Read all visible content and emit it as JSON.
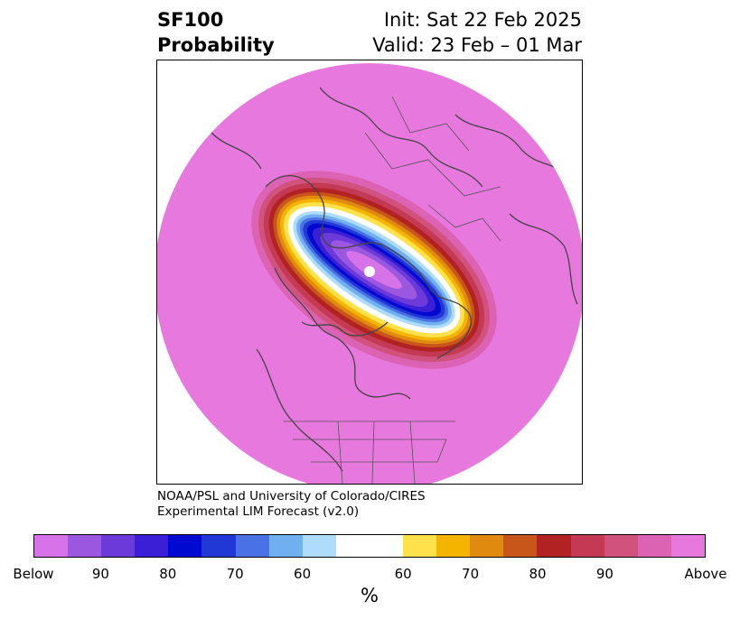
{
  "title": {
    "left_line1": "SF100",
    "left_line2": "Probability",
    "right_line1": "Init: Sat 22 Feb 2025",
    "right_line2": "Valid: 23 Feb – 01 Mar"
  },
  "credit": {
    "line1": "NOAA/PSL and University of Colorado/CIRES",
    "line2": "Experimental LIM Forecast (v2.0)"
  },
  "map": {
    "projection": "north-polar-stereographic",
    "background_category": "Above",
    "background_color": "#e779de",
    "pole_marker_color": "#ffffff",
    "coastline_color": "#444444"
  },
  "colorbar": {
    "unit": "%",
    "tick_labels": [
      "Below",
      "90",
      "80",
      "70",
      "60",
      "60",
      "70",
      "80",
      "90",
      "Above"
    ],
    "segments": [
      {
        "color": "#d673e8",
        "span": 1
      },
      {
        "color": "#9b57e0",
        "span": 1
      },
      {
        "color": "#6c3ad8",
        "span": 1
      },
      {
        "color": "#3a1fd6",
        "span": 1
      },
      {
        "color": "#0009cf",
        "span": 1
      },
      {
        "color": "#2137d6",
        "span": 1
      },
      {
        "color": "#4a72e6",
        "span": 1
      },
      {
        "color": "#71b0f0",
        "span": 1
      },
      {
        "color": "#aedcfa",
        "span": 1
      },
      {
        "color": "#ffffff",
        "span": 2
      },
      {
        "color": "#ffe14a",
        "span": 1
      },
      {
        "color": "#f4b400",
        "span": 1
      },
      {
        "color": "#e08a10",
        "span": 1
      },
      {
        "color": "#c8551a",
        "span": 1
      },
      {
        "color": "#b22222",
        "span": 1
      },
      {
        "color": "#c43a55",
        "span": 1
      },
      {
        "color": "#d2527e",
        "span": 1
      },
      {
        "color": "#dc62b4",
        "span": 1
      },
      {
        "color": "#e779de",
        "span": 1
      }
    ]
  }
}
